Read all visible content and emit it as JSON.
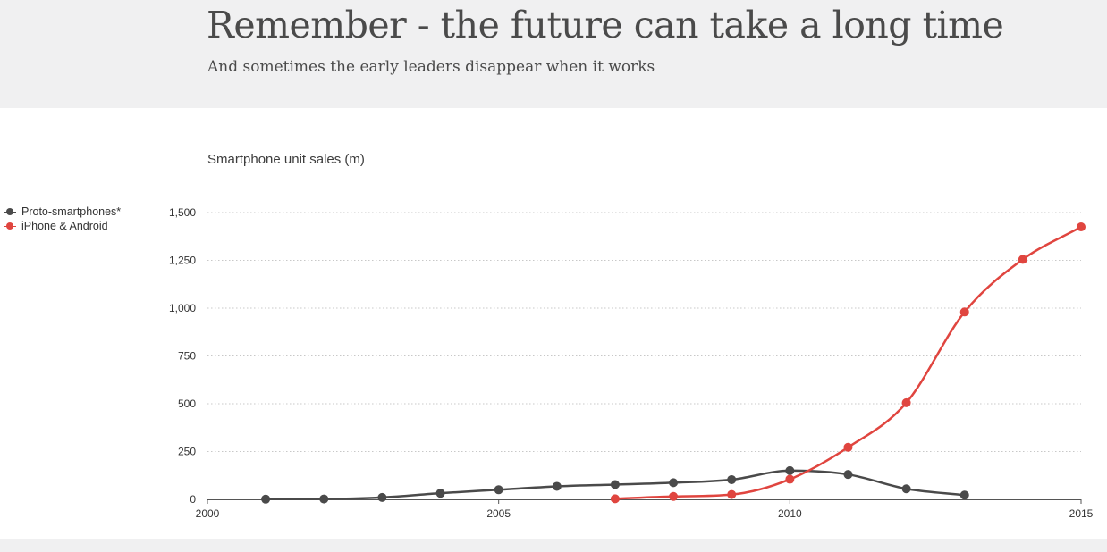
{
  "header": {
    "title": "Remember - the future can take a long time",
    "subtitle": "And sometimes the early leaders disappear when it works"
  },
  "colors": {
    "proto": "#4a4a4a",
    "iphone_android": "#e0453f",
    "grid": "#c8c8c8",
    "axis": "#555555"
  },
  "chart_data": {
    "type": "line",
    "title": "Smartphone unit sales (m)",
    "xlabel": "",
    "ylabel": "",
    "xlim": [
      2000,
      2015
    ],
    "ylim": [
      0,
      1500
    ],
    "x_ticks": [
      "2000",
      "2005",
      "2010",
      "2015"
    ],
    "y_ticks": [
      "0",
      "250",
      "500",
      "750",
      "1,000",
      "1,250",
      "1,500"
    ],
    "grid": "horizontal dotted",
    "legend_position": "left",
    "series": [
      {
        "name": "Proto-smartphones*",
        "x": [
          2001,
          2002,
          2003,
          2004,
          2005,
          2006,
          2007,
          2008,
          2009,
          2010,
          2011,
          2012,
          2013
        ],
        "y": [
          1,
          2,
          10,
          32,
          50,
          68,
          77,
          87,
          103,
          150,
          130,
          55,
          22
        ]
      },
      {
        "name": "iPhone & Android",
        "x": [
          2007,
          2008,
          2009,
          2010,
          2011,
          2012,
          2013,
          2014,
          2015
        ],
        "y": [
          3,
          15,
          25,
          105,
          272,
          505,
          980,
          1255,
          1425
        ]
      }
    ]
  }
}
